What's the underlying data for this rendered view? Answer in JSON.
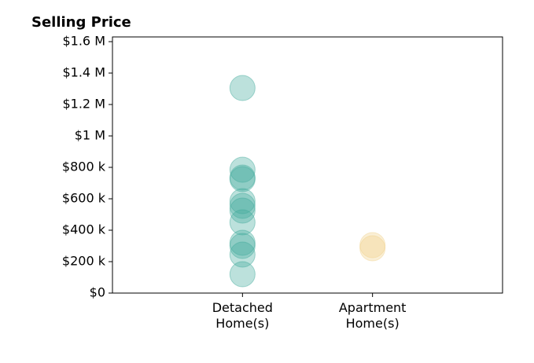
{
  "chart_data": {
    "type": "strip",
    "title": "Selling Price",
    "categories": [
      "Detached\nHome(s)",
      "Apartment\nHome(s)"
    ],
    "colors": [
      "#3fa99a",
      "#f0d08a"
    ],
    "values": [
      [
        1305000,
        785000,
        735000,
        725000,
        585000,
        555000,
        525000,
        450000,
        320000,
        300000,
        245000,
        120000
      ],
      [
        305000,
        285000
      ]
    ],
    "xlim": [
      -1,
      2
    ],
    "ylim": [
      0,
      1630000
    ],
    "yticks": [
      {
        "value": 0,
        "label": "$0"
      },
      {
        "value": 200000,
        "label": "$200 k"
      },
      {
        "value": 400000,
        "label": "$400 k"
      },
      {
        "value": 600000,
        "label": "$600 k"
      },
      {
        "value": 800000,
        "label": "$800 k"
      },
      {
        "value": 1000000,
        "label": "$1 M"
      },
      {
        "value": 1200000,
        "label": "$1.2 M"
      },
      {
        "value": 1400000,
        "label": "$1.4 M"
      },
      {
        "value": 1600000,
        "label": "$1.6 M"
      }
    ]
  }
}
